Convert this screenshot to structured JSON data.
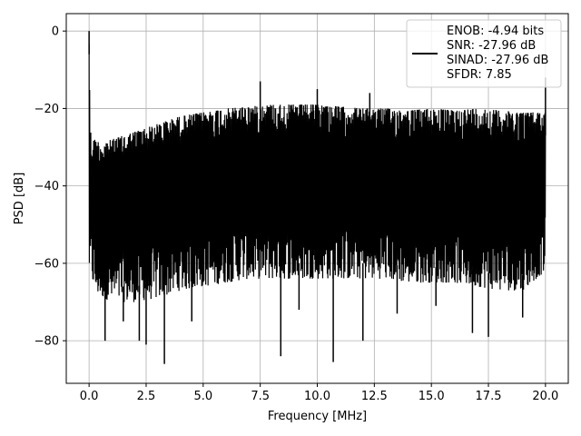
{
  "chart_data": {
    "type": "line",
    "xlabel": "Frequency [MHz]",
    "ylabel": "PSD [dB]",
    "xlim": [
      -1.0,
      21.0
    ],
    "ylim": [
      -91.0,
      4.5
    ],
    "xticks": [
      0.0,
      2.5,
      5.0,
      7.5,
      10.0,
      12.5,
      15.0,
      17.5,
      20.0
    ],
    "xtick_labels": [
      "0.0",
      "2.5",
      "5.0",
      "7.5",
      "10.0",
      "12.5",
      "15.0",
      "17.5",
      "20.0"
    ],
    "yticks": [
      0,
      -20,
      -40,
      -60,
      -80
    ],
    "ytick_labels": [
      "0",
      "−20",
      "−40",
      "−60",
      "−80"
    ],
    "grid": true,
    "legend_placement": "upper-right",
    "series": [
      {
        "color": "#000000",
        "upper_envelope": {
          "x": [
            0.0,
            0.05,
            0.1,
            0.3,
            0.5,
            1.0,
            2.0,
            3.0,
            4.0,
            5.0,
            6.0,
            7.0,
            8.0,
            9.0,
            10.0,
            11.0,
            12.0,
            13.0,
            14.0,
            15.0,
            16.0,
            17.0,
            18.0,
            19.0,
            20.0
          ],
          "y": [
            0,
            -24,
            -28,
            -28,
            -29,
            -28,
            -26,
            -24,
            -22,
            -21,
            -20,
            -19.5,
            -19,
            -19,
            -19,
            -19.5,
            -20,
            -20,
            -20.5,
            -20,
            -20.5,
            -20,
            -20.5,
            -21,
            -21
          ]
        },
        "lower_envelope": {
          "x": [
            0.0,
            0.3,
            1.0,
            2.0,
            3.0,
            4.0,
            5.0,
            6.0,
            7.0,
            8.0,
            9.0,
            10.0,
            11.0,
            12.0,
            13.0,
            14.0,
            15.0,
            16.0,
            17.0,
            18.0,
            19.0,
            20.0
          ],
          "y": [
            -62,
            -68,
            -70,
            -70,
            -69,
            -67,
            -66,
            -65,
            -64,
            -64,
            -64,
            -64,
            -64,
            -64,
            -64,
            -65,
            -65,
            -65,
            -66,
            -67,
            -67,
            -62
          ]
        },
        "spikes": [
          {
            "x": 0.0,
            "y": 0
          },
          {
            "x": 7.5,
            "y": -13
          },
          {
            "x": 10.0,
            "y": -15
          },
          {
            "x": 12.3,
            "y": -16
          },
          {
            "x": 20.0,
            "y": -12
          }
        ],
        "dips": [
          {
            "x": 0.7,
            "y": -80
          },
          {
            "x": 2.2,
            "y": -80
          },
          {
            "x": 2.5,
            "y": -81
          },
          {
            "x": 3.3,
            "y": -86
          },
          {
            "x": 8.4,
            "y": -84
          },
          {
            "x": 10.7,
            "y": -85.5
          },
          {
            "x": 12.0,
            "y": -80
          },
          {
            "x": 16.8,
            "y": -78
          },
          {
            "x": 17.5,
            "y": -79
          },
          {
            "x": 1.5,
            "y": -75
          },
          {
            "x": 4.5,
            "y": -75
          },
          {
            "x": 9.2,
            "y": -72
          },
          {
            "x": 13.5,
            "y": -73
          },
          {
            "x": 15.2,
            "y": -71
          },
          {
            "x": 19.0,
            "y": -74
          }
        ]
      }
    ],
    "legend": {
      "lines": [
        "ENOB: -4.94 bits",
        "SNR: -27.96 dB",
        "SINAD: -27.96 dB",
        "SFDR: 7.85"
      ]
    }
  }
}
